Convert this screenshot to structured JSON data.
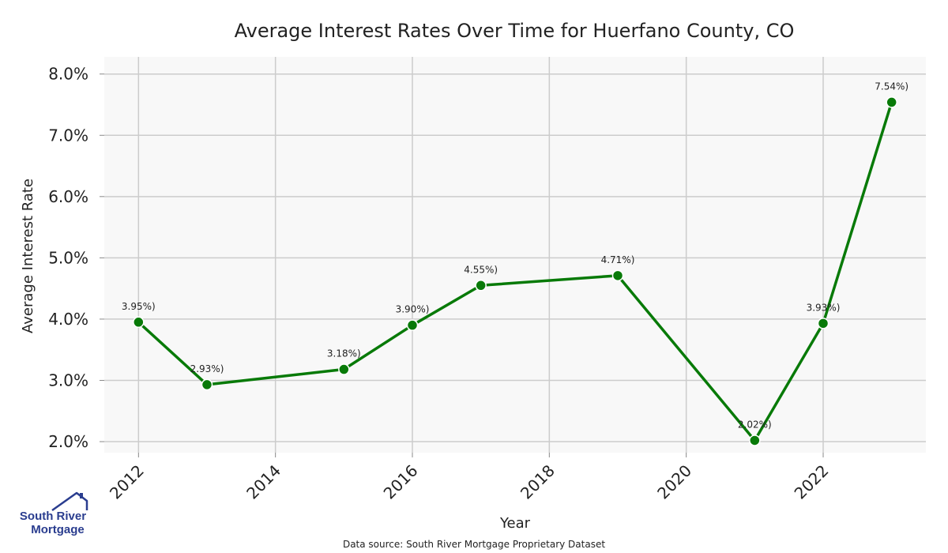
{
  "chart_data": {
    "type": "line",
    "title": "Average Interest Rates Over Time for Huerfano County, CO",
    "xlabel": "Year",
    "ylabel": "Average Interest Rate",
    "x": [
      2012,
      2013,
      2015,
      2016,
      2017,
      2019,
      2021,
      2022,
      2023
    ],
    "y": [
      3.95,
      2.93,
      3.18,
      3.9,
      4.55,
      4.71,
      2.02,
      3.93,
      7.54
    ],
    "data_labels": [
      "3.95%)",
      "2.93%)",
      "3.18%)",
      "3.90%)",
      "4.55%)",
      "4.71%)",
      "2.02%)",
      "3.93%)",
      "7.54%)"
    ],
    "x_ticks": [
      2012,
      2014,
      2016,
      2018,
      2020,
      2022
    ],
    "y_ticks": [
      2.0,
      3.0,
      4.0,
      5.0,
      6.0,
      7.0,
      8.0
    ],
    "y_tick_labels": [
      "2.0%",
      "3.0%",
      "4.0%",
      "5.0%",
      "6.0%",
      "7.0%",
      "8.0%"
    ],
    "xlim": [
      2011.5,
      2023.5
    ],
    "ylim": [
      1.82,
      8.28
    ],
    "grid": true,
    "line_color": "#087a08",
    "background_color": "#f8f8f8"
  },
  "footer": {
    "source": "Data source: South River Mortgage Proprietary Dataset"
  },
  "logo": {
    "line1": "South River",
    "line2": "Mortgage",
    "color": "#2a3d8f"
  }
}
